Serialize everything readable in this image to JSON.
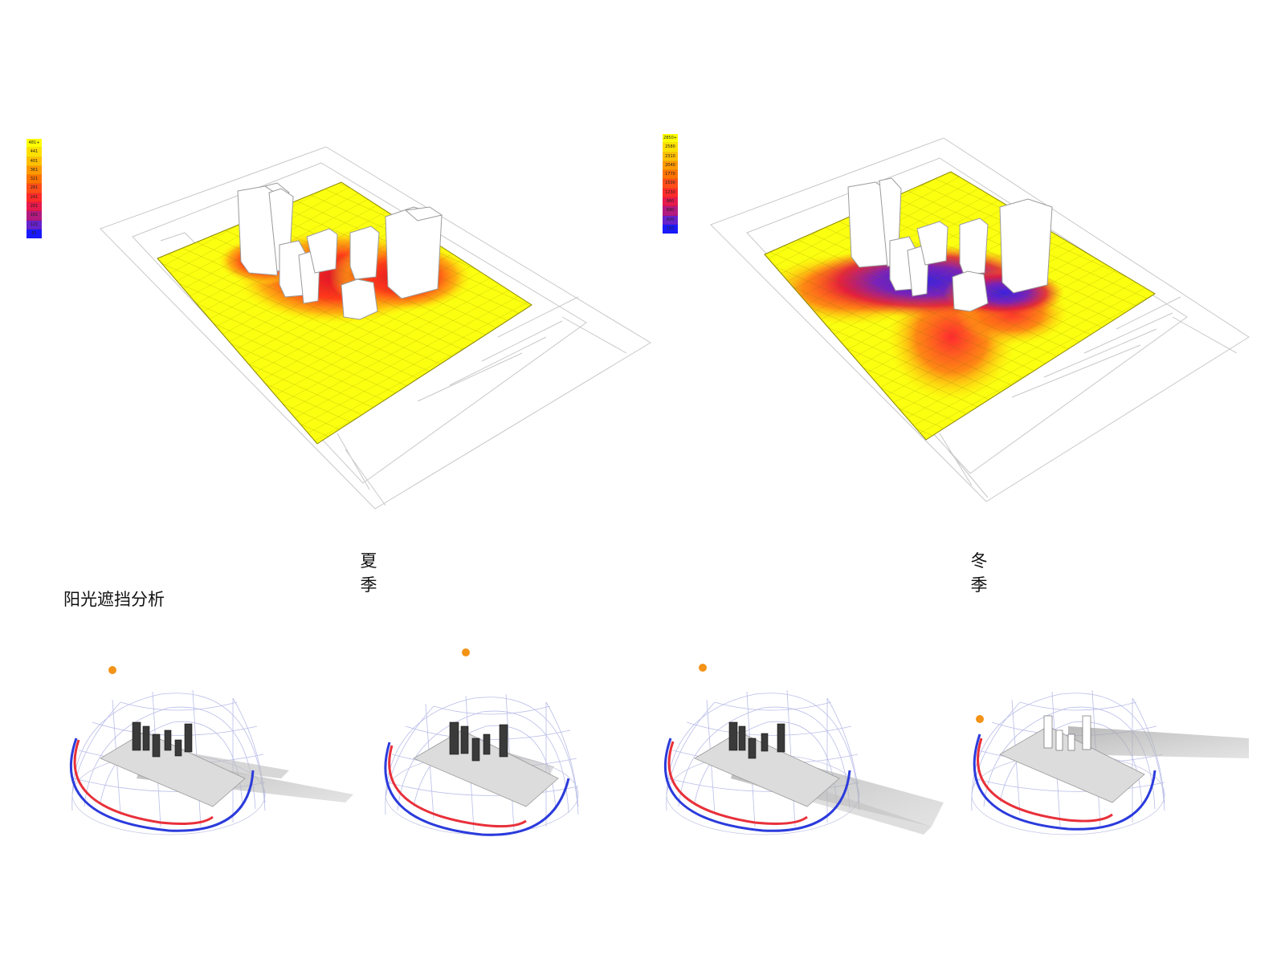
{
  "title": "阳光遮挡分析",
  "summer": {
    "label_top": "夏",
    "label_bottom": "季",
    "legend": [
      "481+",
      "441",
      "401",
      "361",
      "321",
      "281",
      "241",
      "201",
      "161",
      "121",
      "81"
    ],
    "legend_colors": [
      "#ffff00",
      "#ffe000",
      "#ffbf00",
      "#ff9900",
      "#ff7300",
      "#ff4d1a",
      "#ff2a2a",
      "#e61a4d",
      "#b31a80",
      "#6622cc",
      "#1a1aff"
    ]
  },
  "winter": {
    "label_top": "冬",
    "label_bottom": "季",
    "legend": [
      "2850+",
      "2580",
      "2310",
      "2040",
      "1770",
      "1500",
      "1230",
      "960",
      "690",
      "420",
      "150"
    ],
    "legend_colors": [
      "#ffff00",
      "#ffe000",
      "#ffbf00",
      "#ff9900",
      "#ff7300",
      "#ff4d1a",
      "#ff2a2a",
      "#e61a4d",
      "#b31a80",
      "#6622cc",
      "#1a1aff"
    ]
  },
  "colors": {
    "sun": "#f39317",
    "sun_path_red": "#e8303a",
    "sun_path_blue": "#2b3bdc",
    "grid_yellow": "#fbff10"
  }
}
